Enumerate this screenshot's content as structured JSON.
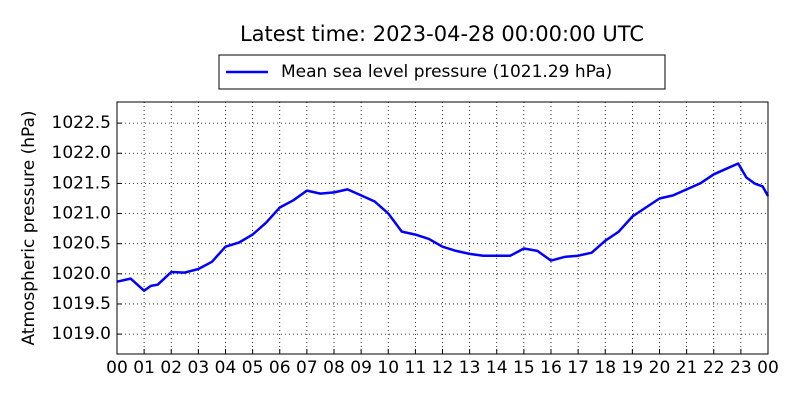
{
  "chart_data": {
    "type": "line",
    "title": "Latest time: 2023-04-28 00:00:00 UTC",
    "y_label": "Atmospheric pressure (hPa)",
    "x": [
      0,
      0.5,
      1.0,
      1.25,
      1.5,
      2.0,
      2.5,
      3.0,
      3.5,
      4.0,
      4.5,
      5.0,
      5.5,
      6.0,
      6.5,
      7.0,
      7.5,
      8.0,
      8.5,
      9.0,
      9.5,
      10.0,
      10.5,
      11.0,
      11.5,
      12.0,
      12.5,
      13.0,
      13.5,
      14.0,
      14.5,
      15.0,
      15.5,
      16.0,
      16.5,
      17.0,
      17.5,
      18.0,
      18.5,
      19.0,
      19.5,
      20.0,
      20.5,
      21.0,
      21.5,
      22.0,
      22.5,
      22.9,
      23.2,
      23.5,
      23.8,
      24.0
    ],
    "series": [
      {
        "name": "Mean sea level pressure (1021.29 hPa)",
        "color": "#0000ff",
        "values": [
          1019.87,
          1019.92,
          1019.72,
          1019.8,
          1019.82,
          1020.03,
          1020.02,
          1020.08,
          1020.2,
          1020.45,
          1020.52,
          1020.65,
          1020.85,
          1021.1,
          1021.22,
          1021.38,
          1021.33,
          1021.35,
          1021.4,
          1021.3,
          1021.2,
          1021.0,
          1020.7,
          1020.65,
          1020.58,
          1020.45,
          1020.38,
          1020.33,
          1020.3,
          1020.3,
          1020.3,
          1020.42,
          1020.38,
          1020.22,
          1020.28,
          1020.3,
          1020.35,
          1020.55,
          1020.7,
          1020.95,
          1021.1,
          1021.25,
          1021.3,
          1021.4,
          1021.5,
          1021.65,
          1021.75,
          1021.83,
          1021.6,
          1021.5,
          1021.45,
          1021.29
        ]
      }
    ],
    "xlim": [
      0,
      24
    ],
    "xticks": [
      {
        "value": 0,
        "label": "00"
      },
      {
        "value": 1,
        "label": "01"
      },
      {
        "value": 2,
        "label": "02"
      },
      {
        "value": 3,
        "label": "03"
      },
      {
        "value": 4,
        "label": "04"
      },
      {
        "value": 5,
        "label": "05"
      },
      {
        "value": 6,
        "label": "06"
      },
      {
        "value": 7,
        "label": "07"
      },
      {
        "value": 8,
        "label": "08"
      },
      {
        "value": 9,
        "label": "09"
      },
      {
        "value": 10,
        "label": "10"
      },
      {
        "value": 11,
        "label": "11"
      },
      {
        "value": 12,
        "label": "12"
      },
      {
        "value": 13,
        "label": "13"
      },
      {
        "value": 14,
        "label": "14"
      },
      {
        "value": 15,
        "label": "15"
      },
      {
        "value": 16,
        "label": "16"
      },
      {
        "value": 17,
        "label": "17"
      },
      {
        "value": 18,
        "label": "18"
      },
      {
        "value": 19,
        "label": "19"
      },
      {
        "value": 20,
        "label": "20"
      },
      {
        "value": 21,
        "label": "21"
      },
      {
        "value": 22,
        "label": "22"
      },
      {
        "value": 23,
        "label": "23"
      },
      {
        "value": 24,
        "label": "00"
      }
    ],
    "ylim": [
      1018.67,
      1022.85
    ],
    "yticks": [
      {
        "value": 1019.0,
        "label": "1019.0"
      },
      {
        "value": 1019.5,
        "label": "1019.5"
      },
      {
        "value": 1020.0,
        "label": "1020.0"
      },
      {
        "value": 1020.5,
        "label": "1020.5"
      },
      {
        "value": 1021.0,
        "label": "1021.0"
      },
      {
        "value": 1021.5,
        "label": "1021.5"
      },
      {
        "value": 1022.0,
        "label": "1022.0"
      },
      {
        "value": 1022.5,
        "label": "1022.5"
      }
    ],
    "grid": true,
    "legend": "top"
  }
}
